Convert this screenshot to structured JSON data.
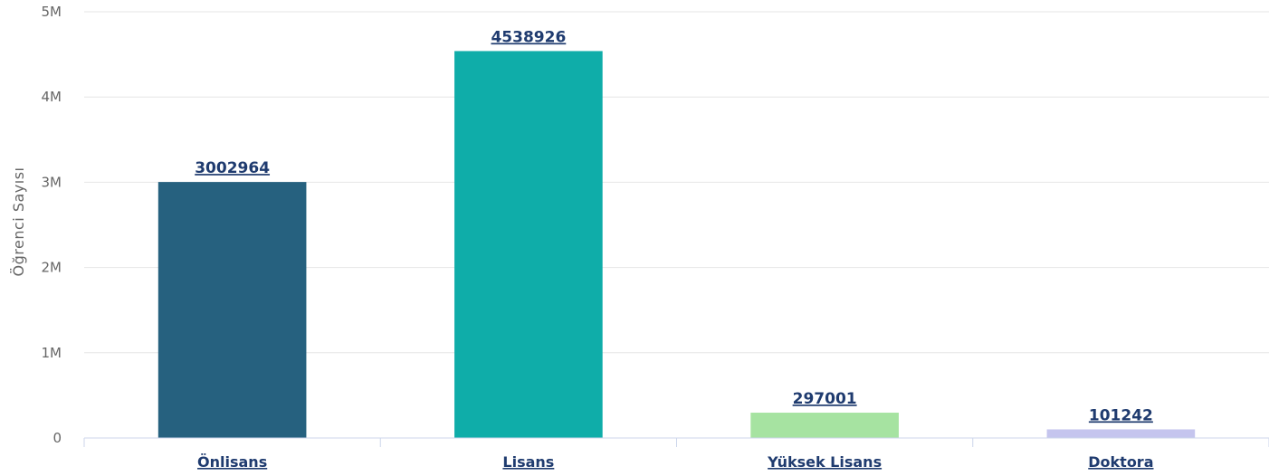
{
  "chart_data": {
    "type": "bar",
    "categories": [
      "Önlisans",
      "Lisans",
      "Yüksek Lisans",
      "Doktora"
    ],
    "values": [
      3002964,
      4538926,
      297001,
      101242
    ],
    "data_labels": [
      "3002964",
      "4538926",
      "297001",
      "101242"
    ],
    "colors": [
      "#26617f",
      "#0fada9",
      "#a6e3a1",
      "#c5c5ee"
    ],
    "ylabel": "Öğrenci Sayısı",
    "ylim": [
      0,
      5000000
    ],
    "y_ticks": [
      0,
      1000000,
      2000000,
      3000000,
      4000000,
      5000000
    ],
    "y_tick_labels": [
      "0",
      "1M",
      "2M",
      "3M",
      "4M",
      "5M"
    ],
    "grid": true,
    "legend": "none"
  }
}
